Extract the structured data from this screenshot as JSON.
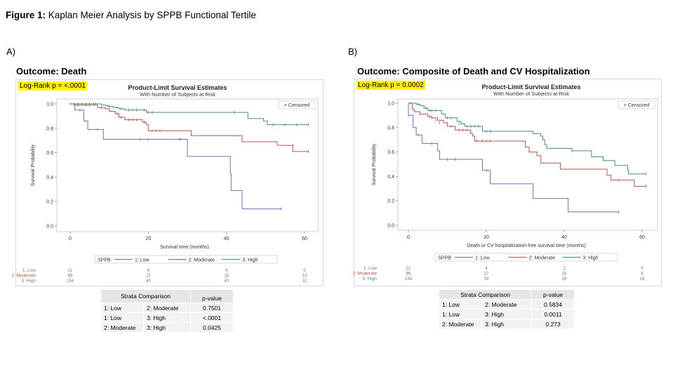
{
  "figure": {
    "title_bold": "Figure 1:",
    "title_rest": " Kaplan Meier Analysis by SPPB Functional Tertile"
  },
  "colors": {
    "low": "#6d72a8",
    "moderate": "#b5564e",
    "high": "#4f8a78",
    "highlight": "#fff200"
  },
  "panels": [
    {
      "label": "A)",
      "outcome": "Outcome: Death",
      "logrank": "Log-Rank  p = <.0001",
      "strata_table": {
        "header": [
          "Strata Comparison",
          "p-value"
        ],
        "rows": [
          [
            "1: Low",
            "2: Moderate",
            "0.7501"
          ],
          [
            "1: Low",
            "3: High",
            "<.0001"
          ],
          [
            "2: Moderate",
            "3: High",
            "0.0425"
          ]
        ]
      }
    },
    {
      "label": "B)",
      "outcome": "Outcome: Composite of Death and CV Hospitalization",
      "logrank": "Log-Rank  p = 0.0002",
      "strata_table": {
        "header": [
          "Strata Comparison",
          "p-value"
        ],
        "rows": [
          [
            "1: Low",
            "2: Moderate",
            "0.5834"
          ],
          [
            "1: Low",
            "3: High",
            "0.0011"
          ],
          [
            "2: Moderate",
            "3: High",
            "0.273"
          ]
        ]
      }
    }
  ],
  "chart_data": [
    {
      "type": "line",
      "step": true,
      "title": "Product-Limit Survival Estimates",
      "subtitle": "With Number of Subjects at Risk",
      "xlabel": "Survival time (months)",
      "ylabel": "Survival Probability",
      "xlim": [
        0,
        60
      ],
      "ylim": [
        0,
        1
      ],
      "xticks": [
        "0",
        "20",
        "40",
        "60"
      ],
      "yticks": [
        "0.0",
        "0.2",
        "0.4",
        "0.6",
        "0.8",
        "1.0"
      ],
      "grid": false,
      "censored_legend": "+ Censored",
      "legend": {
        "title": "SPPB",
        "entries": [
          "1: Low",
          "2: Moderate",
          "3: High"
        ],
        "placement": "bottom"
      },
      "series": [
        {
          "name": "1: Low",
          "color_key": "low",
          "steps": [
            [
              0,
              1.0
            ],
            [
              1,
              1.0
            ],
            [
              1.2,
              0.95
            ],
            [
              3.5,
              0.86
            ],
            [
              4.5,
              0.79
            ],
            [
              8.5,
              0.71
            ],
            [
              30,
              0.71
            ],
            [
              30,
              0.57
            ],
            [
              41,
              0.57
            ],
            [
              41,
              0.43
            ],
            [
              41.2,
              0.29
            ],
            [
              44,
              0.29
            ],
            [
              44,
              0.14
            ],
            [
              54,
              0.14
            ]
          ],
          "censored": [
            [
              2.5,
              0.95
            ],
            [
              7,
              0.79
            ],
            [
              18,
              0.71
            ],
            [
              20,
              0.71
            ],
            [
              28,
              0.71
            ],
            [
              28.3,
              0.71
            ],
            [
              54,
              0.14
            ]
          ]
        },
        {
          "name": "2: Moderate",
          "color_key": "moderate",
          "steps": [
            [
              0,
              1.0
            ],
            [
              1,
              0.99
            ],
            [
              6,
              0.99
            ],
            [
              7,
              0.97
            ],
            [
              9,
              0.96
            ],
            [
              10,
              0.94
            ],
            [
              11.5,
              0.92
            ],
            [
              12.5,
              0.89
            ],
            [
              14,
              0.87
            ],
            [
              18,
              0.87
            ],
            [
              18.5,
              0.85
            ],
            [
              19.5,
              0.83
            ],
            [
              20,
              0.78
            ],
            [
              31,
              0.78
            ],
            [
              31,
              0.74
            ],
            [
              44,
              0.74
            ],
            [
              44,
              0.69
            ],
            [
              53,
              0.69
            ],
            [
              53,
              0.66
            ],
            [
              57,
              0.66
            ],
            [
              57,
              0.61
            ],
            [
              61,
              0.61
            ]
          ],
          "censored": [
            [
              2,
              0.99
            ],
            [
              4,
              0.99
            ],
            [
              5,
              0.99
            ],
            [
              8,
              0.97
            ],
            [
              12,
              0.92
            ],
            [
              13,
              0.89
            ],
            [
              15,
              0.87
            ],
            [
              16,
              0.87
            ],
            [
              17,
              0.87
            ],
            [
              19,
              0.85
            ],
            [
              21,
              0.78
            ],
            [
              22,
              0.78
            ],
            [
              23,
              0.78
            ],
            [
              57,
              0.66
            ],
            [
              61,
              0.61
            ]
          ]
        },
        {
          "name": "3: High",
          "color_key": "high",
          "steps": [
            [
              0,
              1.0
            ],
            [
              7,
              1.0
            ],
            [
              8,
              0.99
            ],
            [
              9.5,
              0.98
            ],
            [
              11,
              0.97
            ],
            [
              12.5,
              0.96
            ],
            [
              14,
              0.95
            ],
            [
              18,
              0.95
            ],
            [
              19.5,
              0.93
            ],
            [
              45,
              0.93
            ],
            [
              45.5,
              0.88
            ],
            [
              49,
              0.88
            ],
            [
              49.5,
              0.86
            ],
            [
              50.5,
              0.83
            ],
            [
              61,
              0.83
            ]
          ],
          "censored": [
            [
              0,
              1.0
            ],
            [
              1,
              1.0
            ],
            [
              2,
              1.0
            ],
            [
              3,
              1.0
            ],
            [
              4,
              1.0
            ],
            [
              5,
              1.0
            ],
            [
              6,
              1.0
            ],
            [
              6.5,
              1.0
            ],
            [
              10,
              0.98
            ],
            [
              12,
              0.97
            ],
            [
              13,
              0.96
            ],
            [
              15,
              0.95
            ],
            [
              16,
              0.95
            ],
            [
              17,
              0.95
            ],
            [
              19,
              0.95
            ],
            [
              20,
              0.93
            ],
            [
              21,
              0.93
            ],
            [
              42,
              0.93
            ],
            [
              52,
              0.83
            ],
            [
              55,
              0.83
            ],
            [
              58,
              0.83
            ],
            [
              61,
              0.83
            ]
          ]
        }
      ],
      "at_risk": {
        "times": [
          0,
          20,
          40,
          60
        ],
        "rows": [
          {
            "label": "1: Low",
            "color_key": "low",
            "values": [
              "21",
              "6",
              "4",
              "0"
            ]
          },
          {
            "label": "2: Moderate",
            "color_key": "moderate",
            "values": [
              "85",
              "21",
              "18",
              "13"
            ]
          },
          {
            "label": "3: High",
            "color_key": "high",
            "values": [
              "154",
              "40",
              "40",
              "31"
            ]
          }
        ]
      }
    },
    {
      "type": "line",
      "step": true,
      "title": "Product-Limit Survival Estimates",
      "subtitle": "With Number of Subjects at Risk",
      "xlabel": "Death or CV hospitalization-free survival time (months)",
      "ylabel": "Survival Probability",
      "xlim": [
        0,
        60
      ],
      "ylim": [
        0,
        1
      ],
      "xticks": [
        "0",
        "20",
        "40",
        "60"
      ],
      "yticks": [
        "0.0",
        "0.2",
        "0.4",
        "0.6",
        "0.8",
        "1.0"
      ],
      "grid": false,
      "censored_legend": "+ Censored",
      "legend": {
        "title": "SPPB",
        "entries": [
          "1: Low",
          "2: Moderate",
          "3: High"
        ],
        "placement": "bottom"
      },
      "series": [
        {
          "name": "1: Low",
          "color_key": "low",
          "steps": [
            [
              0,
              1.0
            ],
            [
              0,
              0.9
            ],
            [
              1,
              0.9
            ],
            [
              1.2,
              0.8
            ],
            [
              2,
              0.8
            ],
            [
              2,
              0.74
            ],
            [
              3.5,
              0.74
            ],
            [
              3.5,
              0.67
            ],
            [
              7.5,
              0.67
            ],
            [
              7.5,
              0.61
            ],
            [
              8,
              0.61
            ],
            [
              8,
              0.54
            ],
            [
              19,
              0.54
            ],
            [
              19,
              0.45
            ],
            [
              21,
              0.45
            ],
            [
              21,
              0.34
            ],
            [
              32,
              0.34
            ],
            [
              32,
              0.22
            ],
            [
              41,
              0.22
            ],
            [
              41,
              0.11
            ],
            [
              54,
              0.11
            ]
          ],
          "censored": [
            [
              0,
              0.9
            ],
            [
              2.5,
              0.74
            ],
            [
              6,
              0.67
            ],
            [
              10,
              0.54
            ],
            [
              12,
              0.54
            ],
            [
              20,
              0.45
            ],
            [
              54,
              0.11
            ]
          ]
        },
        {
          "name": "2: Moderate",
          "color_key": "moderate",
          "steps": [
            [
              0,
              1.0
            ],
            [
              1,
              0.95
            ],
            [
              1.5,
              0.93
            ],
            [
              3,
              0.91
            ],
            [
              5,
              0.89
            ],
            [
              6,
              0.88
            ],
            [
              7.5,
              0.86
            ],
            [
              9,
              0.84
            ],
            [
              10,
              0.81
            ],
            [
              12,
              0.78
            ],
            [
              16,
              0.78
            ],
            [
              16,
              0.75
            ],
            [
              16.5,
              0.73
            ],
            [
              17,
              0.69
            ],
            [
              30,
              0.69
            ],
            [
              30,
              0.64
            ],
            [
              31,
              0.6
            ],
            [
              33,
              0.57
            ],
            [
              34,
              0.51
            ],
            [
              39,
              0.51
            ],
            [
              39,
              0.46
            ],
            [
              51,
              0.46
            ],
            [
              51,
              0.41
            ],
            [
              52,
              0.41
            ],
            [
              52,
              0.37
            ],
            [
              58,
              0.37
            ],
            [
              58,
              0.32
            ],
            [
              61,
              0.32
            ]
          ],
          "censored": [
            [
              3,
              0.91
            ],
            [
              5.5,
              0.89
            ],
            [
              6,
              0.88
            ],
            [
              7,
              0.86
            ],
            [
              8,
              0.84
            ],
            [
              11,
              0.81
            ],
            [
              13,
              0.78
            ],
            [
              14,
              0.78
            ],
            [
              15,
              0.78
            ],
            [
              17.5,
              0.69
            ],
            [
              19,
              0.69
            ],
            [
              20,
              0.69
            ],
            [
              21,
              0.69
            ],
            [
              54,
              0.37
            ],
            [
              61,
              0.32
            ]
          ]
        },
        {
          "name": "3: High",
          "color_key": "high",
          "steps": [
            [
              0,
              1.0
            ],
            [
              2,
              0.99
            ],
            [
              3,
              0.98
            ],
            [
              4,
              0.96
            ],
            [
              5,
              0.94
            ],
            [
              8,
              0.94
            ],
            [
              8.5,
              0.91
            ],
            [
              9.5,
              0.88
            ],
            [
              12,
              0.88
            ],
            [
              12.5,
              0.85
            ],
            [
              13.5,
              0.83
            ],
            [
              14.5,
              0.81
            ],
            [
              19,
              0.81
            ],
            [
              19,
              0.77
            ],
            [
              32,
              0.77
            ],
            [
              32,
              0.75
            ],
            [
              34,
              0.73
            ],
            [
              34.5,
              0.7
            ],
            [
              35,
              0.66
            ],
            [
              35.5,
              0.63
            ],
            [
              42,
              0.63
            ],
            [
              42,
              0.61
            ],
            [
              47,
              0.61
            ],
            [
              47,
              0.56
            ],
            [
              50,
              0.56
            ],
            [
              50,
              0.53
            ],
            [
              53,
              0.53
            ],
            [
              53,
              0.49
            ],
            [
              56,
              0.49
            ],
            [
              56.3,
              0.45
            ],
            [
              56.5,
              0.42
            ],
            [
              61,
              0.42
            ]
          ],
          "censored": [
            [
              0.5,
              1.0
            ],
            [
              2.5,
              0.99
            ],
            [
              4.5,
              0.96
            ],
            [
              5.5,
              0.94
            ],
            [
              6,
              0.94
            ],
            [
              7,
              0.94
            ],
            [
              10,
              0.88
            ],
            [
              11,
              0.88
            ],
            [
              13,
              0.83
            ],
            [
              15,
              0.81
            ],
            [
              16,
              0.81
            ],
            [
              17,
              0.81
            ],
            [
              18,
              0.81
            ],
            [
              20,
              0.77
            ],
            [
              21,
              0.77
            ],
            [
              42,
              0.61
            ],
            [
              61,
              0.42
            ]
          ]
        }
      ],
      "at_risk": {
        "times": [
          0,
          20,
          40,
          60
        ],
        "rows": [
          {
            "label": "1: Low",
            "color_key": "low",
            "values": [
              "21",
              "4",
              "2",
              "0"
            ]
          },
          {
            "label": "2: Moderate",
            "color_key": "moderate",
            "values": [
              "85",
              "17",
              "10",
              "6"
            ]
          },
          {
            "label": "3: High",
            "color_key": "high",
            "values": [
              "154",
              "33",
              "26",
              "16"
            ]
          }
        ]
      }
    }
  ]
}
